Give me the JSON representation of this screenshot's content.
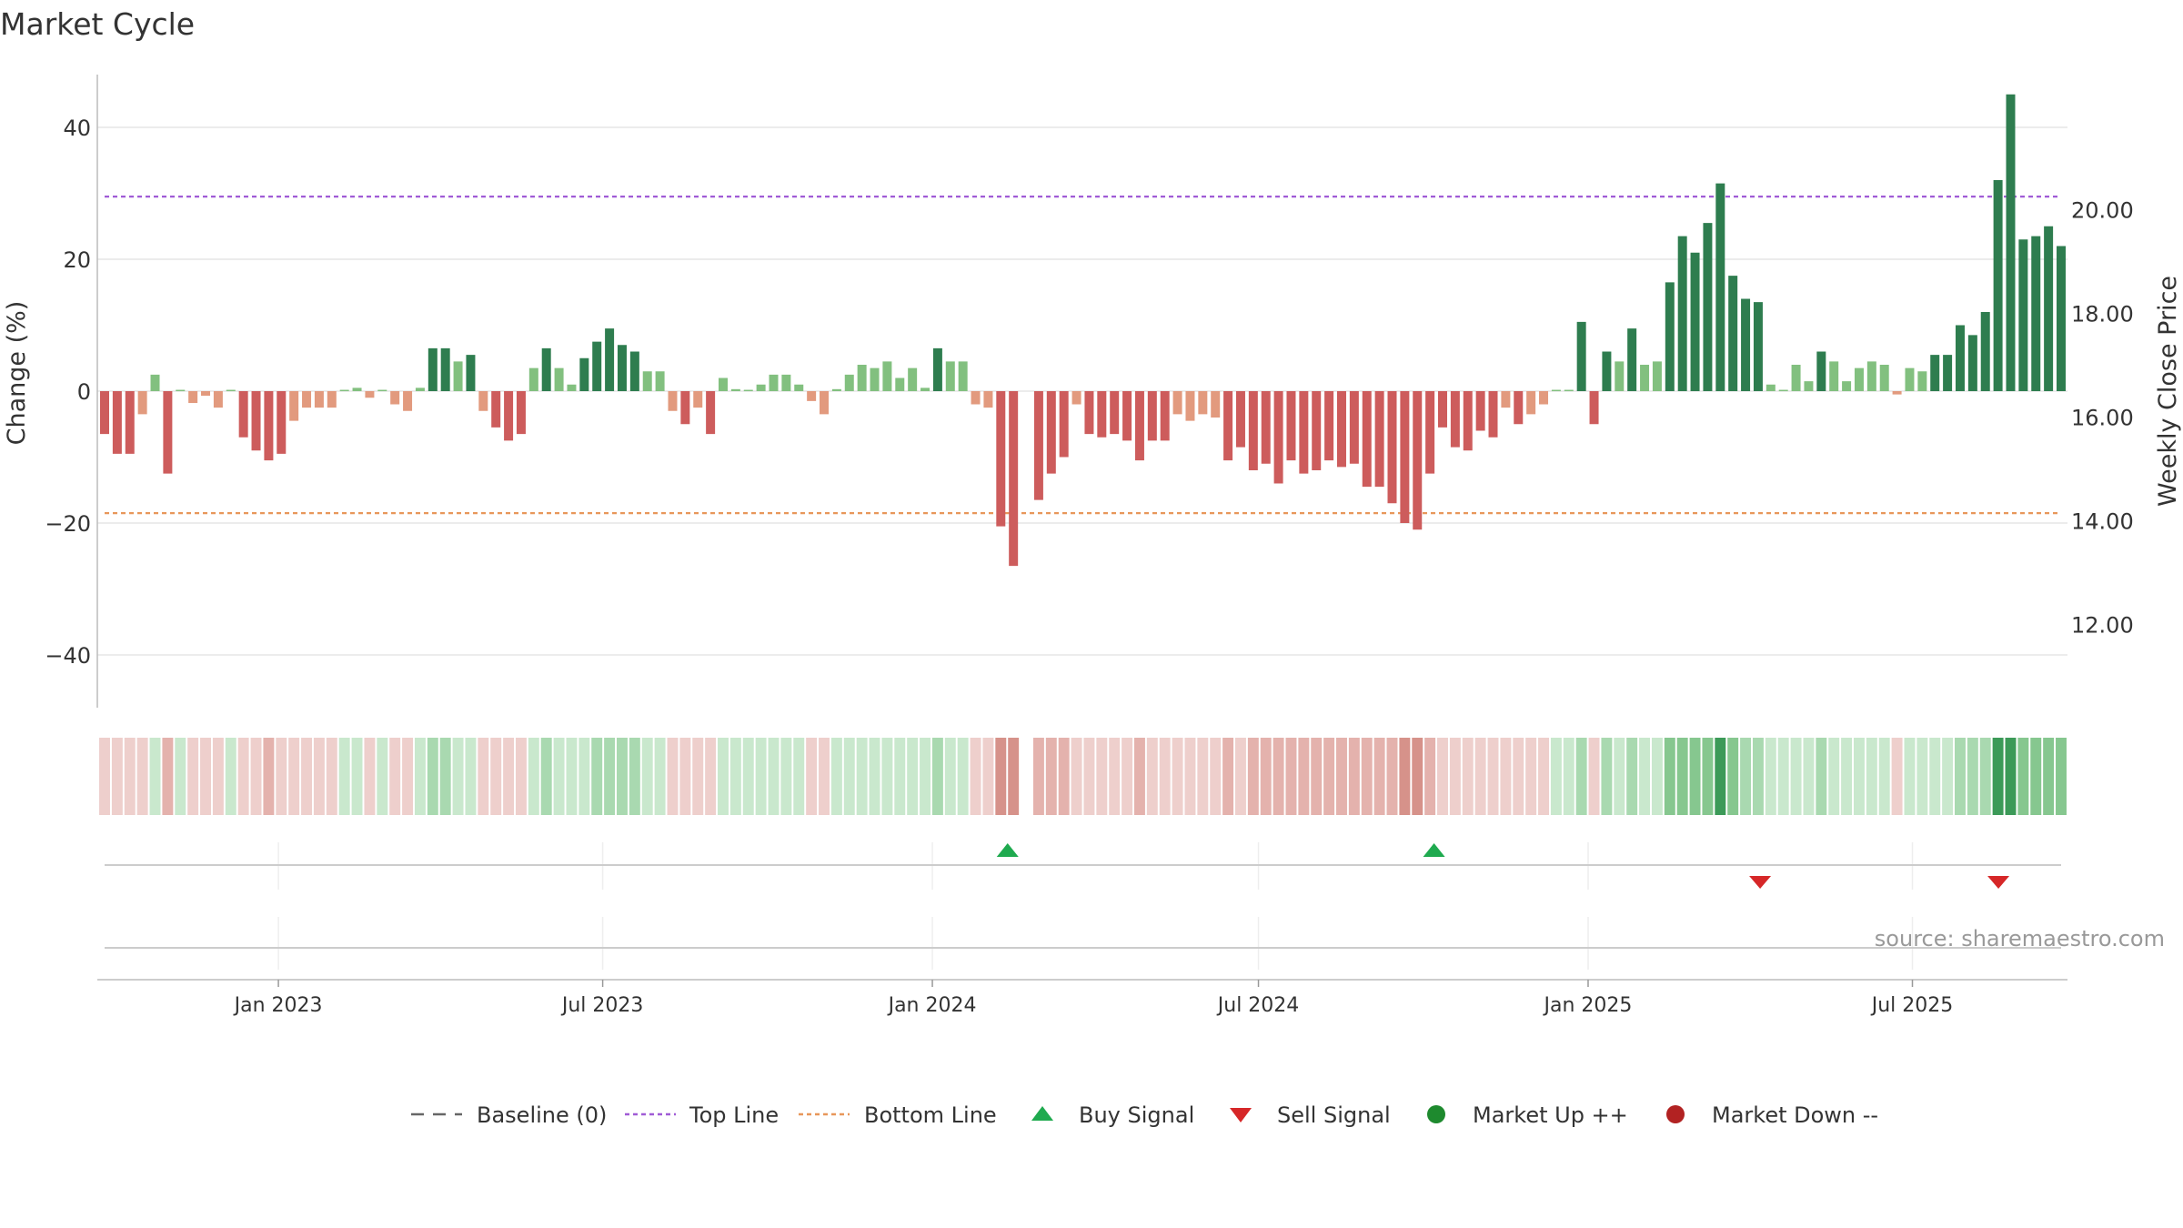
{
  "chart_data": {
    "type": "bar",
    "title": "Market Cycle",
    "ylabel_left": "Change (%)",
    "ylabel_right": "Weekly Close Price",
    "source": "source: sharemaestro.com",
    "left_axis": {
      "range": [
        -48,
        48
      ],
      "ticks": [
        40,
        20,
        0,
        -20,
        -40
      ],
      "tick_labels": [
        "40",
        "20",
        "0",
        "−20",
        "−40"
      ]
    },
    "right_axis": {
      "range": [
        10.4,
        22.6
      ],
      "ticks": [
        20,
        18,
        16,
        14,
        12
      ],
      "tick_labels": [
        "20.00",
        "18.00",
        "16.00",
        "14.00",
        "12.00"
      ]
    },
    "time_axis": {
      "start": "2022-09-26",
      "end": "2025-09-22",
      "tick_dates": [
        "2023-01-01",
        "2023-07-01",
        "2024-01-01",
        "2024-07-01",
        "2025-01-01",
        "2025-07-01"
      ],
      "tick_labels": [
        "Jan 2023",
        "Jul 2023",
        "Jan 2024",
        "Jul 2024",
        "Jan 2025",
        "Jul 2025"
      ]
    },
    "reference_lines": {
      "top_line": 29.5,
      "bottom_line": -18.5,
      "baseline": 0
    },
    "weekly_change": [
      -6.5,
      -9.5,
      -9.5,
      -3.5,
      2.5,
      -12.5,
      0.2,
      -1.8,
      -0.7,
      -2.5,
      0.2,
      -7,
      -9,
      -10.5,
      -9.5,
      -4.5,
      -2.5,
      -2.5,
      -2.5,
      0.2,
      0.5,
      -1,
      0.2,
      -2,
      -3,
      0.5,
      6.5,
      6.5,
      4.5,
      5.5,
      -3,
      -5.5,
      -7.5,
      -6.5,
      3.5,
      6.5,
      3.5,
      1,
      5,
      7.5,
      9.5,
      7,
      6,
      3,
      3,
      -3,
      -5,
      -2.5,
      -6.5,
      2,
      0.3,
      0.2,
      1,
      2.5,
      2.5,
      1,
      -1.5,
      -3.5,
      0.3,
      2.5,
      4,
      3.5,
      4.5,
      2,
      3.5,
      0.5,
      6.5,
      4.5,
      4.5,
      -2,
      -2.5,
      -20.5,
      -26.5,
      null,
      -16.5,
      -12.5,
      -10,
      -2,
      -6.5,
      -7,
      -6.5,
      -7.5,
      -10.5,
      -7.5,
      -7.5,
      -3.5,
      -4.5,
      -3.5,
      -4,
      -10.5,
      -8.5,
      -12,
      -11,
      -14,
      -10.5,
      -12.5,
      -12,
      -10.5,
      -11.5,
      -11,
      -14.5,
      -14.5,
      -17,
      -20,
      -21,
      -12.5,
      -5.5,
      -8.5,
      -9,
      -6,
      -7,
      -2.5,
      -5,
      -3.5,
      -2,
      0.2,
      0.2,
      10.5,
      -5,
      6,
      4.5,
      9.5,
      4,
      4.5,
      16.5,
      23.5,
      21,
      25.5,
      31.5,
      17.5,
      14,
      13.5,
      1,
      0.2,
      4,
      1.5,
      6,
      4.5,
      1.5,
      3.5,
      4.5,
      4,
      -0.5,
      3.5,
      3,
      5.5,
      5.5,
      10,
      8.5,
      12,
      32,
      45,
      23,
      23.5,
      25,
      22
    ],
    "signals": {
      "buy": [
        "2024-02-12",
        "2024-10-07"
      ],
      "sell": [
        "2025-04-07",
        "2025-08-18"
      ]
    },
    "legend": [
      "Baseline (0)",
      "Top Line",
      "Bottom Line",
      "Buy Signal",
      "Sell Signal",
      "Market Up ++",
      "Market Down --"
    ],
    "colors": {
      "up_strong": "#2e7d4f",
      "up_light": "#82c07f",
      "down_strong": "#cd5c5c",
      "down_light": "#e29a7e",
      "top_line": "#a05bd6",
      "bottom_line": "#e8975a",
      "buy": "#1faa4f",
      "sell": "#d62728",
      "market_up": "#1e8a2e",
      "market_down": "#b22222",
      "baseline": "#666666"
    }
  }
}
